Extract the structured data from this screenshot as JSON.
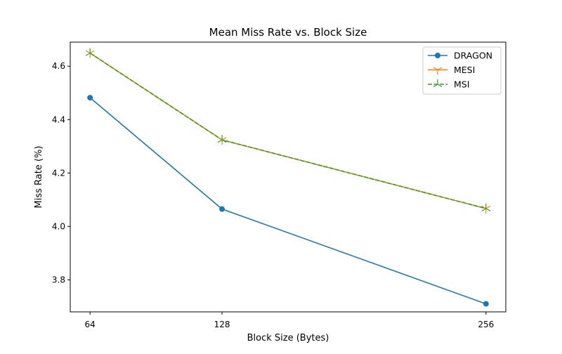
{
  "chart_data": {
    "type": "line",
    "title": "Mean Miss Rate vs. Block Size",
    "xlabel": "Block Size (Bytes)",
    "ylabel": "Miss Rate (%)",
    "x": [
      64,
      128,
      256
    ],
    "x_tick_labels": [
      "64",
      "128",
      "256"
    ],
    "y_ticks": [
      3.8,
      4.0,
      4.2,
      4.4,
      4.6
    ],
    "y_tick_labels": [
      "3.8",
      "4.0",
      "4.2",
      "4.4",
      "4.6"
    ],
    "ylim": [
      3.68,
      4.69
    ],
    "grid": false,
    "legend_position": "top-right",
    "series": [
      {
        "name": "DRAGON",
        "values": [
          4.482,
          4.065,
          3.71
        ],
        "color": "#1f77b4",
        "line_style": "solid",
        "marker": "circle"
      },
      {
        "name": "MESI",
        "values": [
          4.649,
          4.324,
          4.067
        ],
        "color": "#ff7f0e",
        "line_style": "solid",
        "marker": "tri-down"
      },
      {
        "name": "MSI",
        "values": [
          4.649,
          4.324,
          4.067
        ],
        "color": "#2ca02c",
        "line_style": "dashed",
        "marker": "tri-up"
      }
    ]
  }
}
